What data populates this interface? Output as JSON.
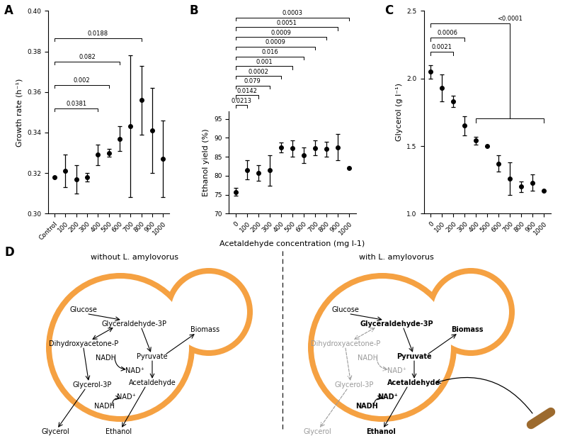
{
  "chart_data": [
    {
      "type": "scatter",
      "panel_label": "A",
      "ylabel": "Growth rate (h⁻¹)",
      "categories": [
        "Control",
        "100",
        "200",
        "300",
        "400",
        "500",
        "600",
        "700",
        "800",
        "900",
        "1000"
      ],
      "values": [
        0.318,
        0.321,
        0.317,
        0.318,
        0.329,
        0.33,
        0.337,
        0.343,
        0.356,
        0.341,
        0.327
      ],
      "errors": [
        0,
        0.008,
        0.007,
        0.002,
        0.005,
        0.002,
        0.006,
        0.035,
        0.017,
        0.021,
        0.019
      ],
      "color": "#000000",
      "marker": "circle",
      "ylim": [
        0.3,
        0.4
      ],
      "yticks": [
        {
          "value": 0.3,
          "label": "0.30"
        },
        0.32,
        0.34,
        0.36,
        0.38,
        {
          "value": 0.4,
          "label": "0.40"
        }
      ],
      "comparisons": [
        {
          "from": "Control",
          "to": "400",
          "label": "0.0381"
        },
        {
          "from": "Control",
          "to": "500",
          "label": "0.002"
        },
        {
          "from": "Control",
          "to": "600",
          "label": "0.082"
        },
        {
          "from": "Control",
          "to": "800",
          "label": "0.0188"
        }
      ]
    },
    {
      "type": "scatter",
      "panel_label": "B",
      "ylabel": "Ethanol yield (%)",
      "xlabel": "Acetaldehyde concentration (mg l-1)",
      "categories": [
        "0",
        "100",
        "200",
        "300",
        "400",
        "500",
        "600",
        "700",
        "800",
        "900",
        "1000"
      ],
      "values": [
        75.7,
        81.5,
        80.7,
        81.4,
        87.5,
        87.2,
        85.4,
        87.3,
        87.0,
        87.5,
        82.0
      ],
      "errors": [
        1.0,
        2.5,
        2.0,
        4.0,
        1.3,
        2.2,
        2.0,
        2.0,
        2.0,
        3.5,
        0
      ],
      "color": "#000000",
      "marker": "circle",
      "ylim": [
        70,
        97
      ],
      "yticks": [
        70,
        75,
        80,
        85,
        90,
        95
      ],
      "comparisons": [
        {
          "from": "0",
          "to": "100",
          "label": "0.0213"
        },
        {
          "from": "0",
          "to": "200",
          "label": "0.0142"
        },
        {
          "from": "0",
          "to": "300",
          "label": "0.079"
        },
        {
          "from": "0",
          "to": "400",
          "label": "0.0002"
        },
        {
          "from": "0",
          "to": "500",
          "label": "0.001"
        },
        {
          "from": "0",
          "to": "600",
          "label": "0.016"
        },
        {
          "from": "0",
          "to": "700",
          "label": "0.0009"
        },
        {
          "from": "0",
          "to": "800",
          "label": "0.0009"
        },
        {
          "from": "0",
          "to": "900",
          "label": "0.0051"
        },
        {
          "from": "0",
          "to": "1000",
          "label": "0.0003"
        }
      ]
    },
    {
      "type": "scatter",
      "panel_label": "C",
      "ylabel": "Glycerol (g l⁻¹)",
      "categories": [
        "0",
        "100",
        "200",
        "300",
        "400",
        "500",
        "600",
        "700",
        "800",
        "900",
        "1000"
      ],
      "values": [
        2.05,
        1.93,
        1.83,
        1.65,
        1.54,
        1.5,
        1.37,
        1.26,
        1.2,
        1.23,
        1.17
      ],
      "errors": [
        0.05,
        0.1,
        0.04,
        0.07,
        0.03,
        0,
        0.06,
        0.12,
        0.04,
        0.06,
        0
      ],
      "color": "#000000",
      "marker": "circle",
      "ylim": [
        1.0,
        2.5
      ],
      "yticks": [
        {
          "value": 1,
          "label": "1.0"
        },
        1.5,
        {
          "value": 2,
          "label": "2.0"
        },
        2.5
      ],
      "comparisons": [
        {
          "from": "0",
          "to": "200",
          "label": "0.0021"
        },
        {
          "from": "0",
          "to": "300",
          "label": "0.0006"
        },
        {
          "from": "0",
          "to": [
            "400",
            "1000"
          ],
          "label": "<0.0001"
        }
      ]
    }
  ],
  "diagram": {
    "panel_label": "D",
    "panels": [
      {
        "title": "without L. amylovorus",
        "nodes": [
          "Glucose",
          "Glyceraldehyde-3P",
          "Dihydroxyacetone-P",
          "NADH",
          "NAD⁺",
          "Glycerol-3P",
          "Glycerol",
          "Pyruvate",
          "Biomass",
          "Acetaldehyde",
          "NAD⁺",
          "NADH",
          "Ethanol"
        ]
      },
      {
        "title": "with L. amylovorus",
        "nodes": [
          "Glucose",
          "Glyceraldehyde-3P",
          "Dihydroxyacetone-P",
          "NADH",
          "NAD⁺",
          "Glycerol-3P",
          "Glycerol",
          "Pyruvate",
          "Biomass",
          "Acetaldehyde",
          "NAD⁺",
          "NADH",
          "Ethanol"
        ]
      }
    ]
  }
}
